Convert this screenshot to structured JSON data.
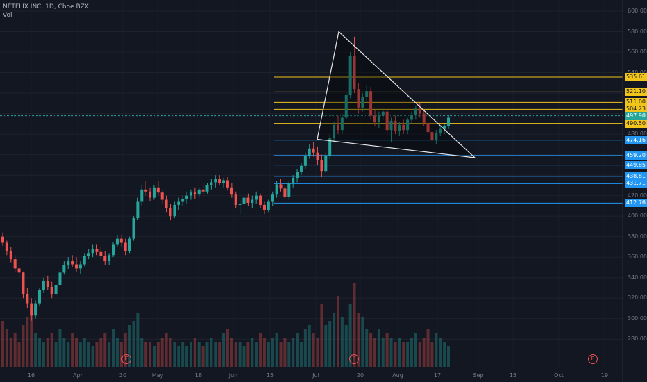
{
  "header": {
    "symbol_line": "NETFLIX INC, 1D, Cboe BZX",
    "indicator": "Vol"
  },
  "colors": {
    "background": "#131722",
    "up": "#26a69a",
    "down": "#ef5350",
    "yellow_level": "#f0c419",
    "blue_level": "#2196f3",
    "triangle": "#e8e8e8",
    "current_price": "#26a69a",
    "axis_text": "#787b86"
  },
  "price_axis": {
    "min": 270,
    "max": 600,
    "ticks": [
      "600.00",
      "580.00",
      "560.00",
      "540.00",
      "520.00",
      "500.00",
      "480.00",
      "460.00",
      "440.00",
      "420.00",
      "400.00",
      "380.00",
      "360.00",
      "340.00",
      "320.00",
      "300.00",
      "280.00"
    ]
  },
  "time_axis": {
    "labels": [
      "16",
      "Apr",
      "20",
      "May",
      "18",
      "Jun",
      "15",
      "Jul",
      "20",
      "Aug",
      "17",
      "Sep",
      "15",
      "Oct",
      "19"
    ]
  },
  "earnings_markers": [
    "E",
    "E",
    "E"
  ],
  "levels": [
    {
      "price": 535.61,
      "label": "535.61",
      "kind": "yellow"
    },
    {
      "price": 521.1,
      "label": "521.10",
      "kind": "yellow"
    },
    {
      "price": 511.0,
      "label": "511.00",
      "kind": "yellow"
    },
    {
      "price": 504.23,
      "label": "504.23",
      "kind": "yellow"
    },
    {
      "price": 490.5,
      "label": "490.50",
      "kind": "yellow"
    },
    {
      "price": 474.16,
      "label": "474.16",
      "kind": "blue"
    },
    {
      "price": 459.2,
      "label": "459.20",
      "kind": "blue"
    },
    {
      "price": 449.85,
      "label": "449.85",
      "kind": "blue"
    },
    {
      "price": 438.81,
      "label": "438.81",
      "kind": "blue"
    },
    {
      "price": 431.71,
      "label": "431.71",
      "kind": "blue"
    },
    {
      "price": 412.76,
      "label": "412.76",
      "kind": "blue"
    }
  ],
  "current_price": {
    "price": 497.9,
    "label": "497.90"
  },
  "chart_data": {
    "type": "candlestick",
    "symbol": "NFLX",
    "interval": "1D",
    "series": [
      {
        "name": "NFLX",
        "values": [
          [
            380,
            384,
            371,
            374
          ],
          [
            374,
            376,
            362,
            366
          ],
          [
            366,
            370,
            355,
            358
          ],
          [
            358,
            362,
            345,
            349
          ],
          [
            349,
            352,
            340,
            345
          ],
          [
            345,
            346,
            320,
            324
          ],
          [
            324,
            330,
            310,
            315
          ],
          [
            315,
            320,
            298,
            303
          ],
          [
            303,
            318,
            300,
            315
          ],
          [
            315,
            330,
            312,
            328
          ],
          [
            328,
            340,
            325,
            337
          ],
          [
            337,
            342,
            328,
            331
          ],
          [
            331,
            336,
            320,
            324
          ],
          [
            324,
            335,
            322,
            333
          ],
          [
            333,
            348,
            330,
            345
          ],
          [
            345,
            356,
            343,
            352
          ],
          [
            352,
            360,
            348,
            356
          ],
          [
            356,
            362,
            350,
            353
          ],
          [
            353,
            360,
            346,
            349
          ],
          [
            349,
            356,
            344,
            353
          ],
          [
            353,
            364,
            351,
            361
          ],
          [
            361,
            368,
            358,
            364
          ],
          [
            364,
            372,
            360,
            368
          ],
          [
            368,
            372,
            362,
            365
          ],
          [
            365,
            370,
            358,
            361
          ],
          [
            361,
            366,
            352,
            356
          ],
          [
            356,
            364,
            352,
            362
          ],
          [
            362,
            375,
            360,
            372
          ],
          [
            372,
            382,
            370,
            378
          ],
          [
            378,
            382,
            370,
            374
          ],
          [
            374,
            378,
            362,
            366
          ],
          [
            366,
            380,
            364,
            378
          ],
          [
            378,
            400,
            376,
            398
          ],
          [
            398,
            418,
            396,
            414
          ],
          [
            414,
            430,
            410,
            426
          ],
          [
            426,
            434,
            420,
            424
          ],
          [
            424,
            428,
            415,
            418
          ],
          [
            418,
            430,
            416,
            428
          ],
          [
            428,
            434,
            420,
            423
          ],
          [
            423,
            426,
            412,
            416
          ],
          [
            416,
            420,
            404,
            408
          ],
          [
            408,
            412,
            396,
            400
          ],
          [
            400,
            414,
            398,
            411
          ],
          [
            411,
            418,
            406,
            414
          ],
          [
            414,
            420,
            410,
            417
          ],
          [
            417,
            424,
            412,
            420
          ],
          [
            420,
            426,
            416,
            423
          ],
          [
            423,
            428,
            417,
            421
          ],
          [
            421,
            428,
            418,
            426
          ],
          [
            426,
            432,
            420,
            424
          ],
          [
            424,
            432,
            422,
            430
          ],
          [
            430,
            436,
            426,
            433
          ],
          [
            433,
            440,
            428,
            436
          ],
          [
            436,
            440,
            430,
            432
          ],
          [
            432,
            437,
            428,
            435
          ],
          [
            435,
            438,
            425,
            428
          ],
          [
            428,
            432,
            418,
            421
          ],
          [
            421,
            424,
            408,
            411
          ],
          [
            411,
            416,
            402,
            412
          ],
          [
            412,
            420,
            408,
            418
          ],
          [
            418,
            422,
            410,
            413
          ],
          [
            413,
            420,
            408,
            416
          ],
          [
            416,
            424,
            412,
            420
          ],
          [
            420,
            422,
            408,
            411
          ],
          [
            411,
            414,
            402,
            406
          ],
          [
            406,
            416,
            404,
            414
          ],
          [
            414,
            424,
            410,
            421
          ],
          [
            421,
            434,
            418,
            431
          ],
          [
            431,
            436,
            424,
            427
          ],
          [
            427,
            430,
            416,
            419
          ],
          [
            419,
            434,
            416,
            432
          ],
          [
            432,
            440,
            428,
            437
          ],
          [
            437,
            446,
            433,
            443
          ],
          [
            443,
            452,
            440,
            449
          ],
          [
            449,
            462,
            446,
            459
          ],
          [
            459,
            470,
            456,
            466
          ],
          [
            466,
            472,
            458,
            462
          ],
          [
            462,
            468,
            450,
            455
          ],
          [
            455,
            460,
            438,
            444
          ],
          [
            444,
            462,
            442,
            459
          ],
          [
            459,
            480,
            456,
            476
          ],
          [
            476,
            492,
            472,
            489
          ],
          [
            489,
            498,
            480,
            484
          ],
          [
            484,
            500,
            480,
            496
          ],
          [
            496,
            520,
            494,
            518
          ],
          [
            518,
            560,
            515,
            556
          ],
          [
            556,
            575,
            520,
            524
          ],
          [
            524,
            530,
            500,
            506
          ],
          [
            506,
            520,
            502,
            516
          ],
          [
            516,
            528,
            510,
            522
          ],
          [
            522,
            526,
            494,
            498
          ],
          [
            498,
            504,
            488,
            492
          ],
          [
            492,
            502,
            486,
            498
          ],
          [
            498,
            506,
            494,
            502
          ],
          [
            502,
            504,
            480,
            484
          ],
          [
            484,
            496,
            472,
            493
          ],
          [
            493,
            498,
            480,
            483
          ],
          [
            483,
            492,
            478,
            489
          ],
          [
            489,
            494,
            480,
            484
          ],
          [
            484,
            496,
            480,
            494
          ],
          [
            494,
            502,
            490,
            499
          ],
          [
            499,
            508,
            494,
            505
          ],
          [
            505,
            510,
            496,
            500
          ],
          [
            500,
            504,
            488,
            491
          ],
          [
            491,
            494,
            480,
            482
          ],
          [
            482,
            486,
            470,
            474
          ],
          [
            474,
            484,
            470,
            481
          ],
          [
            481,
            488,
            478,
            485
          ],
          [
            485,
            490,
            480,
            488
          ],
          [
            488,
            498,
            485,
            496
          ]
        ]
      }
    ],
    "volume": [
      22,
      18,
      14,
      16,
      12,
      20,
      24,
      28,
      16,
      14,
      12,
      14,
      16,
      12,
      18,
      14,
      12,
      16,
      14,
      12,
      14,
      12,
      10,
      12,
      14,
      16,
      12,
      18,
      14,
      12,
      16,
      20,
      22,
      26,
      14,
      12,
      12,
      10,
      12,
      14,
      16,
      14,
      12,
      10,
      12,
      10,
      12,
      14,
      12,
      10,
      12,
      14,
      12,
      12,
      16,
      18,
      14,
      12,
      12,
      10,
      12,
      14,
      12,
      16,
      14,
      12,
      14,
      16,
      12,
      14,
      12,
      14,
      16,
      12,
      18,
      20,
      16,
      14,
      30,
      20,
      22,
      26,
      34,
      24,
      20,
      30,
      40,
      26,
      24,
      18,
      16,
      14,
      18,
      14,
      16,
      14,
      12,
      14,
      12,
      12,
      14,
      16,
      12,
      14,
      18,
      12,
      16,
      14,
      12,
      10
    ],
    "triangle": {
      "apex_price": 580,
      "left_price": 475,
      "right_price": 457
    },
    "xlabel": "",
    "ylabel": ""
  }
}
